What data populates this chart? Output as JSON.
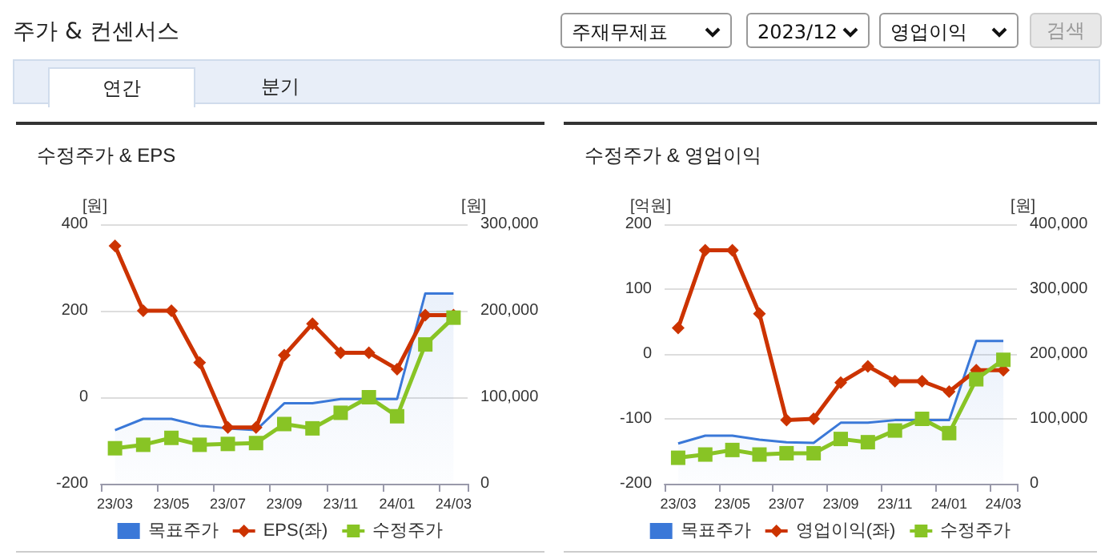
{
  "chart_data": [
    {
      "type": "other",
      "title": "주가 & 컨센서스",
      "annotations": [
        "주재무제표",
        "2023/12",
        "영업이익",
        "검색",
        "연간",
        "분기"
      ]
    },
    {
      "type": "line",
      "title": "수정주가 & EPS",
      "ylabel": "[원]",
      "y2label": "[원]",
      "categories": [
        "23/03",
        null,
        "23/05",
        null,
        "23/07",
        null,
        "23/09",
        null,
        "23/11",
        null,
        "24/01",
        null,
        "24/03"
      ],
      "series": [
        {
          "name": "목표주가",
          "type": "area",
          "axis": "y2",
          "color": "#3a78d8",
          "marker": "none",
          "values": [
            62000,
            75000,
            75000,
            67000,
            64000,
            62000,
            93000,
            93000,
            98000,
            98000,
            98000,
            220000,
            220000
          ]
        },
        {
          "name": "EPS(좌)",
          "type": "line",
          "color": "#cc3300",
          "marker": "diamond",
          "values": [
            350,
            200,
            200,
            80,
            -70,
            -70,
            97,
            170,
            103,
            103,
            65,
            190,
            190
          ]
        },
        {
          "name": "수정주가",
          "type": "line",
          "axis": "y2",
          "color": "#88c425",
          "marker": "square",
          "values": [
            41000,
            45000,
            53000,
            45000,
            46000,
            47000,
            69000,
            64000,
            82000,
            100000,
            78000,
            161000,
            192000
          ]
        }
      ],
      "ylim": [
        -200,
        400
      ],
      "yticks": [
        -200,
        0,
        200,
        400
      ],
      "y2lim": [
        0,
        300000
      ],
      "y2ticks": [
        0,
        {
          "value": 100000,
          "label": "100,000"
        },
        {
          "value": 200000,
          "label": "200,000"
        },
        {
          "value": 300000,
          "label": "300,000"
        }
      ],
      "grid": "y",
      "legend": "bottom"
    },
    {
      "type": "line",
      "title": "수정주가 & 영업이익",
      "ylabel": "[억원]",
      "y2label": "[원]",
      "categories": [
        "23/03",
        null,
        "23/05",
        null,
        "23/07",
        null,
        "23/09",
        null,
        "23/11",
        null,
        "24/01",
        null,
        "24/03"
      ],
      "series": [
        {
          "name": "목표주가",
          "type": "area",
          "axis": "y2",
          "color": "#3a78d8",
          "marker": "none",
          "values": [
            62000,
            74000,
            74000,
            68000,
            64000,
            63000,
            94000,
            94000,
            98000,
            98000,
            98000,
            220000,
            220000
          ]
        },
        {
          "name": "영업이익(좌)",
          "type": "line",
          "color": "#cc3300",
          "marker": "diamond",
          "values": [
            40,
            160,
            160,
            62,
            -102,
            -100,
            -44,
            -19,
            -42,
            -42,
            -58,
            -25,
            -25
          ]
        },
        {
          "name": "수정주가",
          "type": "line",
          "axis": "y2",
          "color": "#88c425",
          "marker": "square",
          "values": [
            40000,
            45000,
            52000,
            45000,
            47000,
            47000,
            69000,
            64000,
            82000,
            100000,
            78000,
            161000,
            191000
          ]
        }
      ],
      "ylim": [
        -200,
        200
      ],
      "yticks": [
        -200,
        -100,
        0,
        100,
        200
      ],
      "y2lim": [
        0,
        400000
      ],
      "y2ticks": [
        0,
        {
          "value": 100000,
          "label": "100,000"
        },
        {
          "value": 200000,
          "label": "200,000"
        },
        {
          "value": 300000,
          "label": "300,000"
        },
        {
          "value": 400000,
          "label": "400,000"
        }
      ],
      "grid": "y",
      "legend": "bottom"
    }
  ]
}
